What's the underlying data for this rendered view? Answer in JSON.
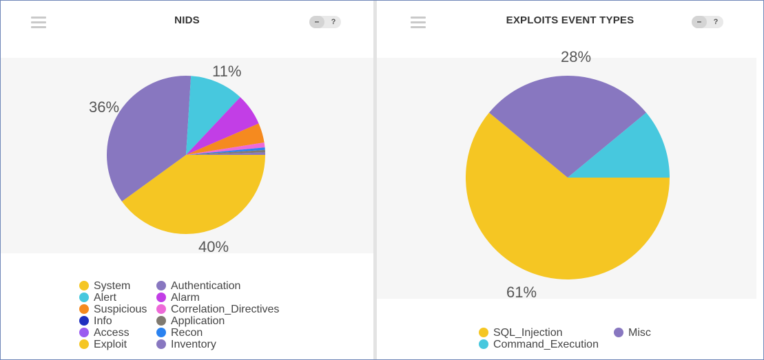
{
  "panels": [
    {
      "title": "NIDS",
      "controls": {
        "minus_label": "–",
        "help_label": "?"
      }
    },
    {
      "title": "EXPLOITS EVENT TYPES",
      "controls": {
        "minus_label": "–",
        "help_label": "?"
      }
    }
  ],
  "chart_data": [
    {
      "type": "pie",
      "title": "NIDS",
      "slices": [
        {
          "name": "System",
          "value": 0,
          "color": "#f5c623"
        },
        {
          "name": "Alert",
          "value": 11,
          "color": "#47c8de"
        },
        {
          "name": "Suspicious",
          "value": 4,
          "color": "#f58a1f"
        },
        {
          "name": "Info",
          "value": 0,
          "color": "#1f2fbf"
        },
        {
          "name": "Access",
          "value": 0,
          "color": "#9a5cf0"
        },
        {
          "name": "Exploit",
          "value": 40,
          "color": "#f5c623"
        },
        {
          "name": "Authentication",
          "value": 36,
          "color": "#8877c0"
        },
        {
          "name": "Alarm",
          "value": 6.5,
          "color": "#c23ee6"
        },
        {
          "name": "Correlation_Directives",
          "value": 1,
          "color": "#ee6ad8"
        },
        {
          "name": "Application",
          "value": 0.5,
          "color": "#807a70"
        },
        {
          "name": "Recon",
          "value": 0.5,
          "color": "#2a82f0"
        },
        {
          "name": "Inventory",
          "value": 0.5,
          "color": "#8877c0"
        }
      ],
      "data_labels": [
        "36%",
        "11%",
        "40%"
      ]
    },
    {
      "type": "pie",
      "title": "EXPLOITS EVENT TYPES",
      "slices": [
        {
          "name": "SQL_Injection",
          "value": 61,
          "color": "#f5c623"
        },
        {
          "name": "Command_Execution",
          "value": 11,
          "color": "#47c8de"
        },
        {
          "name": "Misc",
          "value": 28,
          "color": "#8877c0"
        }
      ],
      "data_labels": [
        "28%",
        "61%"
      ]
    }
  ]
}
